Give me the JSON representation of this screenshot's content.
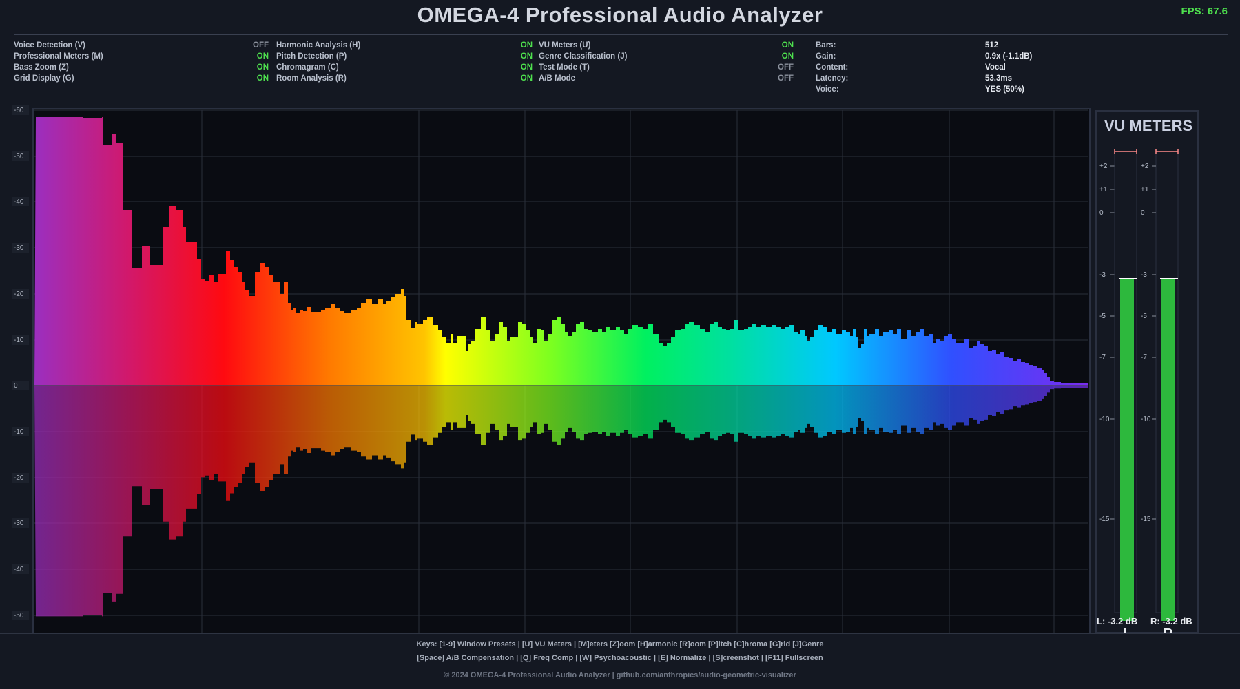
{
  "header": {
    "title": "OMEGA-4 Professional Audio Analyzer",
    "fps": "FPS: 67.6"
  },
  "status": {
    "col1": [
      {
        "label": "Voice Detection (V)",
        "value": "OFF"
      },
      {
        "label": "Professional Meters (M)",
        "value": "ON"
      },
      {
        "label": "Bass Zoom (Z)",
        "value": "ON"
      },
      {
        "label": "Grid Display (G)",
        "value": "ON"
      }
    ],
    "col2": [
      {
        "label": "Harmonic Analysis (H)",
        "value": "ON"
      },
      {
        "label": "Pitch Detection (P)",
        "value": "ON"
      },
      {
        "label": "Chromagram (C)",
        "value": "ON"
      },
      {
        "label": "Room Analysis (R)",
        "value": "ON"
      }
    ],
    "col3": [
      {
        "label": "VU Meters (U)",
        "value": "ON"
      },
      {
        "label": "Genre Classification (J)",
        "value": "ON"
      },
      {
        "label": "Test Mode (T)",
        "value": "OFF"
      },
      {
        "label": "A/B Mode",
        "value": "OFF"
      }
    ],
    "info": [
      {
        "key": "Bars:",
        "value": "512"
      },
      {
        "key": "Gain:",
        "value": "0.9x (-1.1dB)"
      },
      {
        "key": "Content:",
        "value": "Vocal"
      },
      {
        "key": "Latency:",
        "value": "53.3ms"
      },
      {
        "key": "Voice:",
        "value": "YES (50%)"
      }
    ]
  },
  "spectrum": {
    "axis_labels": [
      "-60",
      "-50",
      "-40",
      "-30",
      "-20",
      "-10",
      "0",
      "-10",
      "-20",
      "-30",
      "-40",
      "-50"
    ],
    "colors": {
      "background": "#0a0c12",
      "grid": "#2a2f3a",
      "gridline_strong": "#3a4050"
    }
  },
  "vu": {
    "title": "VU METERS",
    "scale_labels": [
      "+2",
      "+1",
      "0",
      "-3",
      "-5",
      "-7",
      "-10",
      "-15"
    ],
    "left_readout": "L: -3.2 dB",
    "right_readout": "R: -3.2 dB",
    "left_channel": "L",
    "right_channel": "R",
    "left_level_db": -3.2,
    "right_level_db": -3.2,
    "meter_color": "#2db83d"
  },
  "footer": {
    "line1": "Keys: [1-9] Window Presets | [U] VU Meters | [M]eters [Z]oom [H]armonic [R]oom [P]itch [C]hroma [G]rid [J]Genre",
    "line2": "[Space] A/B Compensation | [Q] Freq Comp | [W] Psychoacoustic | [E] Normalize | [S]creenshot | [F11] Fullscreen",
    "copyright": "© 2024 OMEGA-4 Professional Audio Analyzer | github.com/anthropics/audio-geometric-visualizer"
  }
}
